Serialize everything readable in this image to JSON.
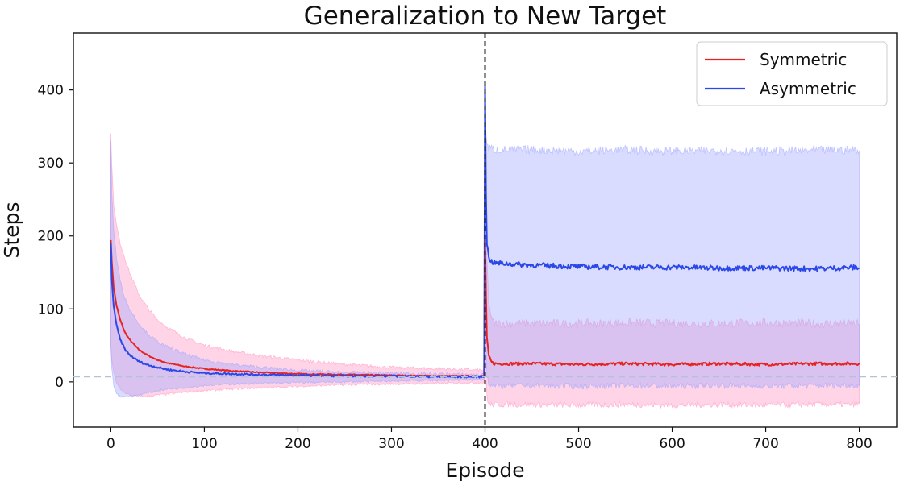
{
  "chart_data": {
    "type": "line",
    "title": "Generalization to New Target",
    "xlabel": "Episode",
    "ylabel": "Steps",
    "xlim": [
      -40,
      840
    ],
    "ylim": [
      -62,
      478
    ],
    "xticks": [
      0,
      100,
      200,
      300,
      400,
      500,
      600,
      700,
      800
    ],
    "yticks": [
      0,
      100,
      200,
      300,
      400
    ],
    "xtick_labels": [
      "0",
      "100",
      "200",
      "300",
      "400",
      "500",
      "600",
      "700",
      "800"
    ],
    "ytick_labels": [
      "0",
      "100",
      "200",
      "300",
      "400"
    ],
    "grid": false,
    "legend_position": "top-right",
    "reference_lines": [
      {
        "orientation": "vertical",
        "value": 400,
        "style": "dashed",
        "color": "#222222"
      },
      {
        "orientation": "horizontal",
        "value": 7,
        "style": "dashed",
        "color": "#b0c4d8"
      }
    ],
    "series": [
      {
        "name": "Symmetric",
        "color": "#e8231f",
        "band_color": "#ff8fc0",
        "x": [
          0,
          1,
          3,
          6,
          10,
          15,
          20,
          30,
          40,
          50,
          60,
          80,
          100,
          130,
          160,
          200,
          250,
          300,
          350,
          399,
          400,
          401,
          402,
          404,
          407,
          410,
          450,
          500,
          550,
          600,
          650,
          700,
          750,
          800
        ],
        "mean": [
          195,
          165,
          130,
          105,
          85,
          68,
          58,
          44,
          36,
          30,
          26,
          21,
          18,
          15,
          13,
          11,
          10,
          9,
          8,
          8,
          200,
          120,
          60,
          35,
          27,
          25,
          25,
          24,
          25,
          24,
          25,
          24,
          25,
          25
        ],
        "upper": [
          340,
          300,
          245,
          215,
          190,
          170,
          150,
          120,
          100,
          85,
          75,
          60,
          50,
          42,
          36,
          30,
          24,
          20,
          18,
          16,
          320,
          250,
          170,
          110,
          85,
          80,
          80,
          80,
          81,
          80,
          80,
          81,
          80,
          80
        ],
        "lower": [
          50,
          30,
          15,
          -2,
          -10,
          -15,
          -18,
          -20,
          -20,
          -18,
          -17,
          -14,
          -12,
          -10,
          -8,
          -6,
          -4,
          -3,
          -2,
          -1,
          80,
          10,
          -20,
          -30,
          -32,
          -31,
          -31,
          -32,
          -31,
          -32,
          -31,
          -32,
          -31,
          -31
        ]
      },
      {
        "name": "Asymmetric",
        "color": "#2b47e8",
        "band_color": "#9aa4ff",
        "x": [
          0,
          1,
          3,
          6,
          10,
          15,
          20,
          30,
          40,
          50,
          60,
          80,
          100,
          130,
          160,
          200,
          250,
          300,
          350,
          399,
          400,
          401,
          402,
          404,
          407,
          410,
          450,
          500,
          550,
          600,
          650,
          700,
          750,
          800
        ],
        "mean": [
          190,
          140,
          105,
          78,
          58,
          45,
          37,
          28,
          23,
          20,
          17,
          14,
          12,
          11,
          10,
          9,
          8,
          8,
          7,
          7,
          410,
          260,
          190,
          170,
          165,
          163,
          160,
          158,
          157,
          157,
          156,
          156,
          155,
          157
        ],
        "upper": [
          330,
          260,
          210,
          170,
          140,
          115,
          100,
          80,
          65,
          55,
          48,
          38,
          30,
          24,
          20,
          16,
          13,
          12,
          11,
          10,
          400,
          340,
          325,
          320,
          320,
          318,
          318,
          316,
          318,
          316,
          317,
          316,
          317,
          318
        ],
        "lower": [
          50,
          20,
          -5,
          -15,
          -20,
          -20,
          -20,
          -18,
          -15,
          -12,
          -10,
          -8,
          -5,
          -3,
          -2,
          -1,
          0,
          1,
          2,
          3,
          150,
          50,
          10,
          -2,
          -5,
          -6,
          -5,
          -6,
          -5,
          -6,
          -5,
          -6,
          -5,
          -5
        ]
      }
    ]
  }
}
